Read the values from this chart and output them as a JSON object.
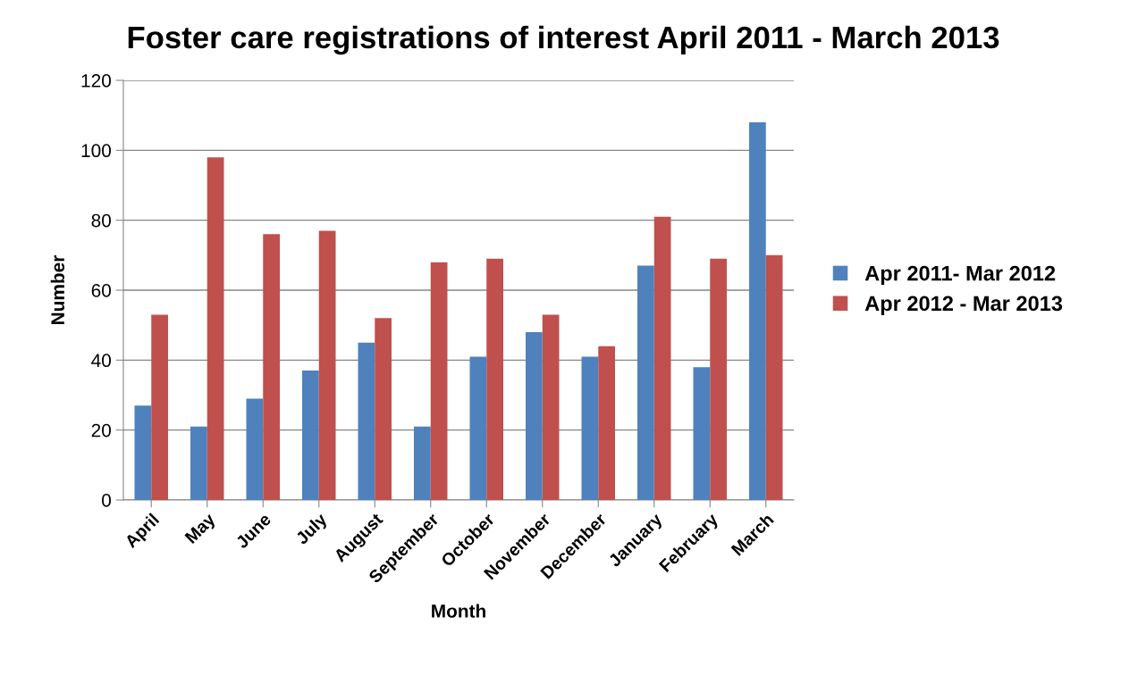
{
  "chart_data": {
    "type": "bar",
    "title": "Foster care registrations of interest April 2011 - March 2013",
    "xlabel": "Month",
    "ylabel": "Number",
    "categories": [
      "April",
      "May",
      "June",
      "July",
      "August",
      "September",
      "October",
      "November",
      "December",
      "January",
      "February",
      "March"
    ],
    "series": [
      {
        "name": "Apr 2011- Mar 2012",
        "color": "#4f81bd",
        "values": [
          27,
          21,
          29,
          37,
          45,
          21,
          41,
          48,
          41,
          67,
          38,
          108
        ]
      },
      {
        "name": "Apr 2012 - Mar 2013",
        "color": "#c0504d",
        "values": [
          53,
          98,
          76,
          77,
          52,
          68,
          69,
          53,
          44,
          81,
          69,
          70
        ]
      }
    ],
    "ylim": [
      0,
      120
    ],
    "yticks": [
      0,
      20,
      40,
      60,
      80,
      100,
      120
    ],
    "grid": "y",
    "legend": "right"
  }
}
